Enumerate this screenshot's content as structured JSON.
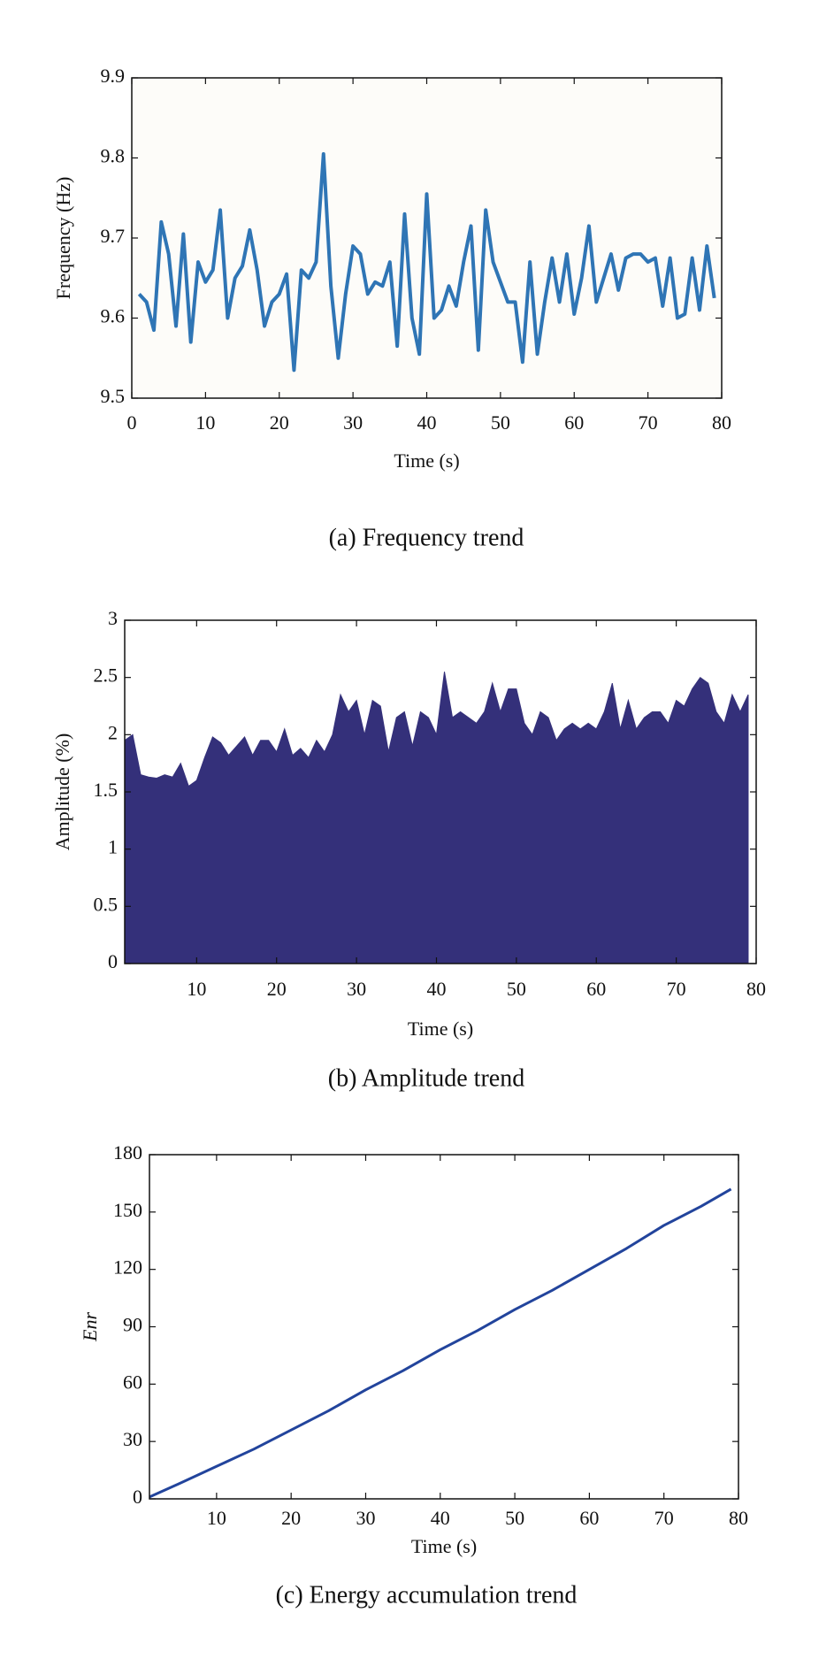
{
  "chart_data": [
    {
      "type": "line",
      "caption": "(a) Frequency trend",
      "xlabel": "Time (s)",
      "ylabel": "Frequency (Hz)",
      "x": [
        1,
        2,
        3,
        4,
        5,
        6,
        7,
        8,
        9,
        10,
        11,
        12,
        13,
        14,
        15,
        16,
        17,
        18,
        19,
        20,
        21,
        22,
        23,
        24,
        25,
        26,
        27,
        28,
        29,
        30,
        31,
        32,
        33,
        34,
        35,
        36,
        37,
        38,
        39,
        40,
        41,
        42,
        43,
        44,
        45,
        46,
        47,
        48,
        49,
        50,
        51,
        52,
        53,
        54,
        55,
        56,
        57,
        58,
        59,
        60,
        61,
        62,
        63,
        64,
        65,
        66,
        67,
        68,
        69,
        70,
        71,
        72,
        73,
        74,
        75,
        76,
        77,
        78,
        79
      ],
      "series": [
        {
          "color": "#2f75b5",
          "values": [
            9.63,
            9.62,
            9.585,
            9.72,
            9.68,
            9.59,
            9.705,
            9.57,
            9.67,
            9.645,
            9.66,
            9.735,
            9.6,
            9.65,
            9.665,
            9.71,
            9.66,
            9.59,
            9.62,
            9.63,
            9.655,
            9.535,
            9.66,
            9.65,
            9.67,
            9.805,
            9.64,
            9.55,
            9.63,
            9.69,
            9.68,
            9.63,
            9.645,
            9.64,
            9.67,
            9.565,
            9.73,
            9.6,
            9.555,
            9.755,
            9.6,
            9.61,
            9.64,
            9.615,
            9.67,
            9.715,
            9.56,
            9.735,
            9.67,
            9.645,
            9.62,
            9.62,
            9.545,
            9.67,
            9.555,
            9.62,
            9.675,
            9.62,
            9.68,
            9.605,
            9.65,
            9.715,
            9.62,
            9.65,
            9.68,
            9.635,
            9.675,
            9.68,
            9.68,
            9.67,
            9.675,
            9.615,
            9.675,
            9.6,
            9.605,
            9.675,
            9.61,
            9.69,
            9.625
          ]
        }
      ],
      "xlim": [
        0,
        80
      ],
      "xticks": [
        0,
        10,
        20,
        30,
        40,
        50,
        60,
        70,
        80
      ],
      "ylim": [
        9.5,
        9.9
      ],
      "yticks": [
        9.5,
        9.6,
        9.7,
        9.8,
        9.9
      ]
    },
    {
      "type": "area",
      "caption": "(b) Amplitude trend",
      "xlabel": "Time (s)",
      "ylabel": "Amplitude (%)",
      "x": [
        1,
        2,
        3,
        4,
        5,
        6,
        7,
        8,
        9,
        10,
        11,
        12,
        13,
        14,
        15,
        16,
        17,
        18,
        19,
        20,
        21,
        22,
        23,
        24,
        25,
        26,
        27,
        28,
        29,
        30,
        31,
        32,
        33,
        34,
        35,
        36,
        37,
        38,
        39,
        40,
        41,
        42,
        43,
        44,
        45,
        46,
        47,
        48,
        49,
        50,
        51,
        52,
        53,
        54,
        55,
        56,
        57,
        58,
        59,
        60,
        61,
        62,
        63,
        64,
        65,
        66,
        67,
        68,
        69,
        70,
        71,
        72,
        73,
        74,
        75,
        76,
        77,
        78,
        79
      ],
      "series": [
        {
          "color": "#34307a",
          "values": [
            1.95,
            2.0,
            1.65,
            1.63,
            1.62,
            1.65,
            1.63,
            1.75,
            1.55,
            1.6,
            1.8,
            1.98,
            1.93,
            1.82,
            1.9,
            1.98,
            1.82,
            1.95,
            1.95,
            1.85,
            2.05,
            1.82,
            1.88,
            1.8,
            1.95,
            1.85,
            2.0,
            2.35,
            2.2,
            2.3,
            2.0,
            2.3,
            2.25,
            1.85,
            2.15,
            2.2,
            1.9,
            2.2,
            2.15,
            2.0,
            2.55,
            2.15,
            2.2,
            2.15,
            2.1,
            2.2,
            2.45,
            2.2,
            2.4,
            2.4,
            2.1,
            2.0,
            2.2,
            2.15,
            1.95,
            2.05,
            2.1,
            2.05,
            2.1,
            2.05,
            2.2,
            2.45,
            2.05,
            2.3,
            2.05,
            2.15,
            2.2,
            2.2,
            2.1,
            2.3,
            2.25,
            2.4,
            2.5,
            2.45,
            2.2,
            2.1,
            2.35,
            2.2,
            2.35
          ]
        }
      ],
      "xlim": [
        1,
        80
      ],
      "xticks": [
        10,
        20,
        30,
        40,
        50,
        60,
        70,
        80
      ],
      "ylim": [
        0,
        3
      ],
      "yticks": [
        0,
        0.5,
        1,
        1.5,
        2,
        2.5,
        3
      ]
    },
    {
      "type": "line",
      "caption": "(c) Energy accumulation trend",
      "xlabel": "Time (s)",
      "ylabel": "Enr",
      "x": [
        1,
        5,
        10,
        15,
        20,
        25,
        30,
        35,
        40,
        45,
        50,
        55,
        60,
        65,
        70,
        75,
        79
      ],
      "series": [
        {
          "color": "#22449c",
          "values": [
            1,
            8,
            17,
            26,
            36,
            46,
            57,
            67,
            78,
            88,
            99,
            109,
            120,
            131,
            143,
            153,
            162
          ]
        }
      ],
      "xlim": [
        1,
        80
      ],
      "xticks": [
        10,
        20,
        30,
        40,
        50,
        60,
        70,
        80
      ],
      "ylim": [
        0,
        180
      ],
      "yticks": [
        0,
        30,
        60,
        90,
        120,
        150,
        180
      ]
    }
  ]
}
